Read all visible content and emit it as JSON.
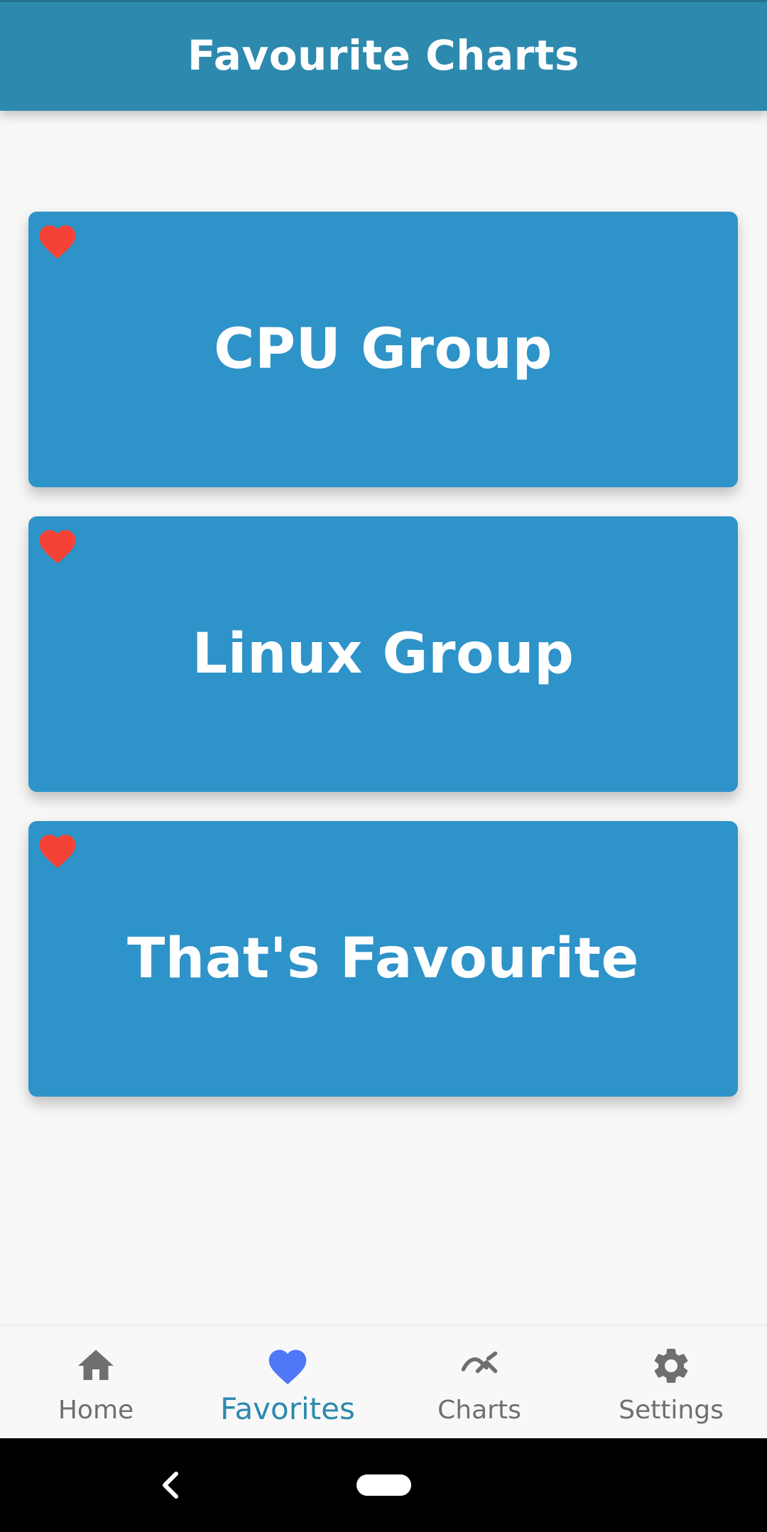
{
  "app_bar": {
    "title": "Favourite Charts"
  },
  "cards": [
    {
      "title": "CPU Group",
      "icon": "heart-icon",
      "favorited": true
    },
    {
      "title": "Linux Group",
      "icon": "heart-icon",
      "favorited": true
    },
    {
      "title": "That's Favourite",
      "icon": "heart-icon",
      "favorited": true
    }
  ],
  "bottom_nav": {
    "items": [
      {
        "label": "Home",
        "icon": "home-icon"
      },
      {
        "label": "Favorites",
        "icon": "heart-icon",
        "active": true
      },
      {
        "label": "Charts",
        "icon": "chart-line-icon"
      },
      {
        "label": "Settings",
        "icon": "gear-icon"
      }
    ]
  },
  "colors": {
    "app_bar": "#2d89ae",
    "card": "#2e93c8",
    "heart": "#f44336",
    "nav_active_icon": "#4f78f7",
    "nav_active_label": "#2d89ae",
    "nav_inactive": "#6f6f6f",
    "background": "#f7f7f5"
  }
}
